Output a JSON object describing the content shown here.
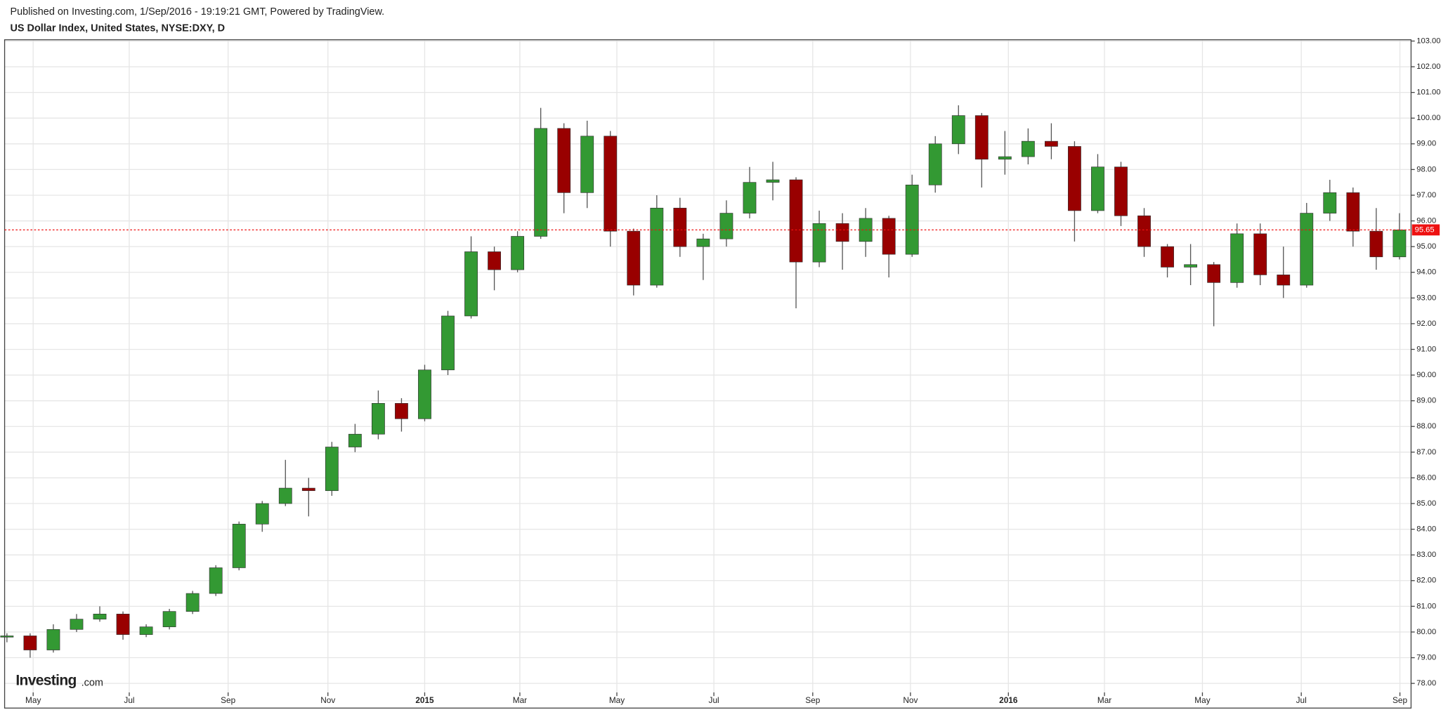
{
  "header": {
    "published": "Published on Investing.com, 1/Sep/2016 - 19:19:21 GMT, Powered by TradingView.",
    "title": "US Dollar Index, United States, NYSE:DXY, D"
  },
  "logo": {
    "brand": "Investing",
    "suffix": ".com"
  },
  "chart_data": {
    "type": "candlestick",
    "open": [
      79.8,
      79.85,
      79.3,
      80.1,
      80.5,
      80.7,
      79.9,
      80.2,
      80.8,
      81.5,
      82.5,
      84.2,
      85.0,
      85.6,
      85.5,
      87.2,
      87.7,
      88.9,
      88.3,
      90.2,
      92.3,
      94.8,
      94.1,
      95.4,
      99.6,
      97.1,
      99.3,
      95.6,
      93.5,
      96.5,
      95.0,
      95.3,
      96.3,
      97.5,
      97.6,
      94.4,
      95.9,
      95.2,
      96.1,
      94.7,
      97.4,
      99.0,
      100.1,
      98.4,
      98.5,
      99.1,
      98.9,
      96.4,
      98.1,
      96.2,
      95.0,
      94.2,
      94.3,
      93.6,
      95.5,
      93.9,
      93.5,
      96.3,
      97.1,
      95.6,
      94.6
    ],
    "high": [
      79.95,
      79.95,
      80.3,
      80.7,
      81.0,
      80.8,
      80.3,
      80.9,
      81.6,
      82.6,
      84.3,
      85.1,
      86.7,
      86.0,
      87.4,
      88.1,
      89.4,
      89.1,
      90.4,
      92.5,
      95.4,
      95.0,
      95.6,
      100.4,
      99.8,
      99.9,
      99.5,
      95.7,
      97.0,
      96.9,
      95.5,
      96.8,
      98.1,
      98.3,
      97.7,
      96.4,
      96.3,
      96.5,
      96.2,
      97.8,
      99.3,
      100.5,
      100.2,
      99.5,
      99.6,
      99.8,
      99.1,
      98.6,
      98.3,
      96.5,
      95.1,
      95.1,
      94.4,
      95.9,
      95.9,
      95.0,
      96.7,
      97.6,
      97.3,
      96.5,
      96.3
    ],
    "low": [
      79.6,
      79.0,
      79.2,
      80.0,
      80.4,
      79.7,
      79.8,
      80.1,
      80.7,
      81.4,
      82.4,
      83.9,
      84.9,
      84.5,
      85.3,
      87.0,
      87.5,
      87.8,
      88.2,
      90.0,
      92.2,
      93.3,
      94.0,
      95.3,
      96.3,
      96.5,
      95.0,
      93.1,
      93.4,
      94.6,
      93.7,
      95.0,
      96.1,
      96.8,
      92.6,
      94.2,
      94.1,
      94.6,
      93.8,
      94.6,
      97.1,
      98.6,
      97.3,
      97.8,
      98.2,
      98.4,
      95.2,
      96.3,
      95.8,
      94.6,
      93.8,
      93.5,
      91.9,
      93.4,
      93.5,
      93.0,
      93.4,
      96.0,
      95.0,
      94.1,
      94.5
    ],
    "close": [
      79.85,
      79.3,
      80.1,
      80.5,
      80.7,
      79.9,
      80.2,
      80.8,
      81.5,
      82.5,
      84.2,
      85.0,
      85.6,
      85.5,
      87.2,
      87.7,
      88.9,
      88.3,
      90.2,
      92.3,
      94.8,
      94.1,
      95.4,
      99.6,
      97.1,
      99.3,
      95.6,
      93.5,
      96.5,
      95.0,
      95.3,
      96.3,
      97.5,
      97.6,
      94.4,
      95.9,
      95.2,
      96.1,
      94.7,
      97.4,
      99.0,
      100.1,
      98.4,
      98.5,
      99.1,
      98.9,
      96.4,
      98.1,
      96.2,
      95.0,
      94.2,
      94.3,
      93.6,
      95.5,
      93.9,
      93.5,
      96.3,
      97.1,
      95.6,
      94.6,
      95.65
    ],
    "up_color": "#339933",
    "down_color": "#990000",
    "last_color": "#ee1111",
    "xlim": [
      -0.1,
      60.5
    ],
    "xticks": [
      {
        "value": 1.13,
        "label": "May"
      },
      {
        "value": 5.27,
        "label": "Jul"
      },
      {
        "value": 9.53,
        "label": "Sep"
      },
      {
        "value": 13.83,
        "label": "Nov"
      },
      {
        "value": 18.0,
        "label": "2015"
      },
      {
        "value": 22.1,
        "label": "Mar"
      },
      {
        "value": 26.28,
        "label": "May"
      },
      {
        "value": 30.46,
        "label": "Jul"
      },
      {
        "value": 34.72,
        "label": "Sep"
      },
      {
        "value": 38.93,
        "label": "Nov"
      },
      {
        "value": 43.15,
        "label": "2016"
      },
      {
        "value": 47.29,
        "label": "Mar"
      },
      {
        "value": 51.51,
        "label": "May"
      },
      {
        "value": 55.77,
        "label": "Jul"
      },
      {
        "value": 60.02,
        "label": "Sep"
      }
    ],
    "ylim": [
      77.65,
      103.05
    ],
    "yticks": [
      {
        "value": 78,
        "label": "78.00"
      },
      {
        "value": 79,
        "label": "79.00"
      },
      {
        "value": 80,
        "label": "80.00"
      },
      {
        "value": 81,
        "label": "81.00"
      },
      {
        "value": 82,
        "label": "82.00"
      },
      {
        "value": 83,
        "label": "83.00"
      },
      {
        "value": 84,
        "label": "84.00"
      },
      {
        "value": 85,
        "label": "85.00"
      },
      {
        "value": 86,
        "label": "86.00"
      },
      {
        "value": 87,
        "label": "87.00"
      },
      {
        "value": 88,
        "label": "88.00"
      },
      {
        "value": 89,
        "label": "89.00"
      },
      {
        "value": 90,
        "label": "90.00"
      },
      {
        "value": 91,
        "label": "91.00"
      },
      {
        "value": 92,
        "label": "92.00"
      },
      {
        "value": 93,
        "label": "93.00"
      },
      {
        "value": 94,
        "label": "94.00"
      },
      {
        "value": 95,
        "label": "95.00"
      },
      {
        "value": 96,
        "label": "96.00"
      },
      {
        "value": 97,
        "label": "97.00"
      },
      {
        "value": 98,
        "label": "98.00"
      },
      {
        "value": 99,
        "label": "99.00"
      },
      {
        "value": 100,
        "label": "100.00"
      },
      {
        "value": 101,
        "label": "101.00"
      },
      {
        "value": 102,
        "label": "102.00"
      },
      {
        "value": 103,
        "label": "103.00"
      }
    ],
    "grid": true
  }
}
